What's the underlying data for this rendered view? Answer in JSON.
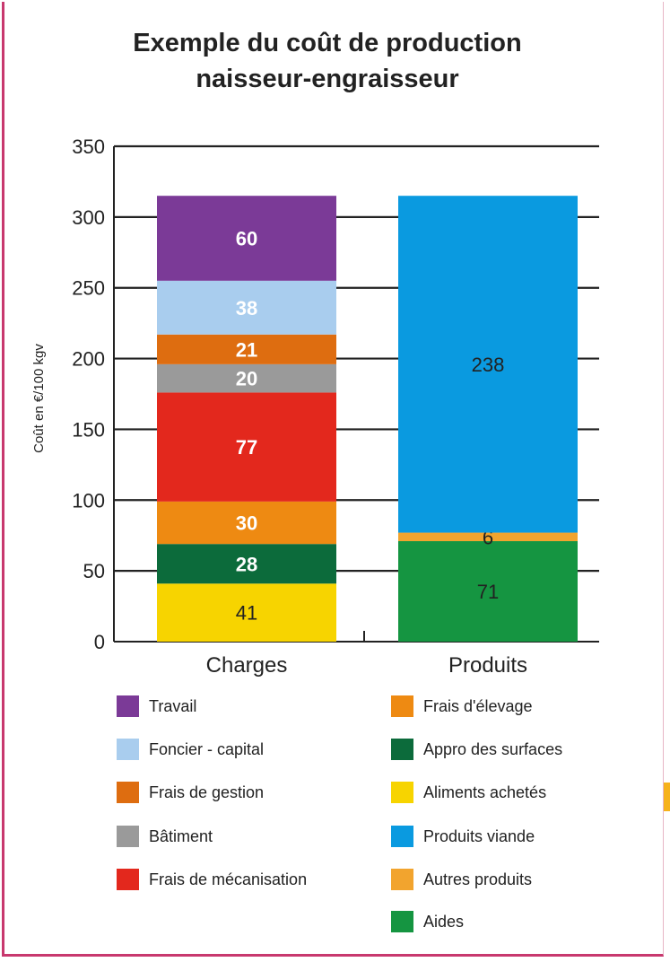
{
  "chart_data": {
    "type": "bar",
    "stacked": true,
    "title": [
      "Exemple du coût de production",
      "naisseur-engraisseur"
    ],
    "ylabel": "Coût en €/100 kgv",
    "ylim": [
      0,
      350
    ],
    "yticks": [
      0,
      50,
      100,
      150,
      200,
      250,
      300,
      350
    ],
    "grid": true,
    "legend_position": "bottom",
    "categories": [
      "Charges",
      "Produits"
    ],
    "series": [
      {
        "name": "Aliments achetés",
        "category": "Charges",
        "value": 41,
        "color": "#f7d400"
      },
      {
        "name": "Appro des surfaces",
        "category": "Charges",
        "value": 28,
        "color": "#0c6b3b"
      },
      {
        "name": "Frais d'élevage",
        "category": "Charges",
        "value": 30,
        "color": "#ee8a12"
      },
      {
        "name": "Frais de mécanisation",
        "category": "Charges",
        "value": 77,
        "color": "#e3281d"
      },
      {
        "name": "Bâtiment",
        "category": "Charges",
        "value": 20,
        "color": "#9a9a9a"
      },
      {
        "name": "Frais de gestion",
        "category": "Charges",
        "value": 21,
        "color": "#de6d10"
      },
      {
        "name": "Foncier - capital",
        "category": "Charges",
        "value": 38,
        "color": "#a9cdee"
      },
      {
        "name": "Travail",
        "category": "Charges",
        "value": 60,
        "color": "#7b3a97"
      },
      {
        "name": "Aides",
        "category": "Produits",
        "value": 71,
        "color": "#159541"
      },
      {
        "name": "Autres produits",
        "category": "Produits",
        "value": 6,
        "color": "#f2a42e"
      },
      {
        "name": "Produits viande",
        "category": "Produits",
        "value": 238,
        "color": "#0a9ae0"
      }
    ]
  },
  "legend": {
    "left": [
      {
        "label": "Travail",
        "color": "#7b3a97"
      },
      {
        "label": "Foncier - capital",
        "color": "#a9cdee"
      },
      {
        "label": "Frais de gestion",
        "color": "#de6d10"
      },
      {
        "label": "Bâtiment",
        "color": "#9a9a9a"
      },
      {
        "label": "Frais de mécanisation",
        "color": "#e3281d"
      }
    ],
    "right": [
      {
        "label": "Frais d'élevage",
        "color": "#ee8a12"
      },
      {
        "label": "Appro des surfaces",
        "color": "#0c6b3b"
      },
      {
        "label": "Aliments achetés",
        "color": "#f7d400"
      },
      {
        "label": "Produits viande",
        "color": "#0a9ae0"
      },
      {
        "label": "Autres produits",
        "color": "#f2a42e"
      },
      {
        "label": "Aides",
        "color": "#159541"
      }
    ]
  }
}
